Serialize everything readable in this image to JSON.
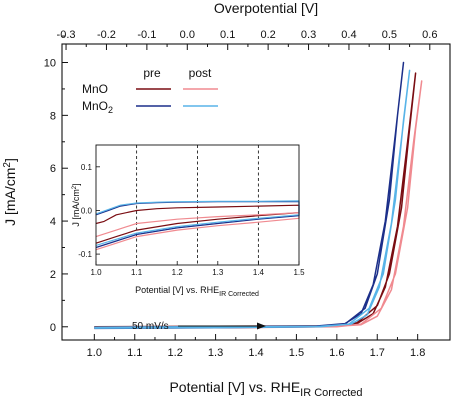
{
  "chart_data": {
    "type": "line",
    "main": {
      "xlabel": "Potential [V] vs. RHE",
      "xlabel_sub": "IR Corrected",
      "ylabel": "J [mA/cm",
      "ylabel_sup": "2",
      "ylabel_end": "]",
      "top_xlabel": "Overpotential [V]",
      "xlim": [
        0.92,
        1.88
      ],
      "ylim": [
        -0.5,
        10.7
      ],
      "x_ticks": [
        "1.0",
        "1.1",
        "1.2",
        "1.3",
        "1.4",
        "1.5",
        "1.6",
        "1.7",
        "1.8"
      ],
      "y_ticks": [
        "0",
        "2",
        "4",
        "6",
        "8",
        "10"
      ],
      "top_ticks": [
        "-0.3",
        "-0.2",
        "-0.1",
        "0.0",
        "0.1",
        "0.2",
        "0.3",
        "0.4",
        "0.5",
        "0.6"
      ],
      "top_offset": 1.23,
      "annotation": "50 mV/s",
      "legend": {
        "header_pre": "pre",
        "header_post": "post",
        "rows": [
          {
            "label": "MnO",
            "pre_color": "#7a0d12",
            "post_color": "#f08a90"
          },
          {
            "label": "MnO",
            "label_sub": "2",
            "pre_color": "#1c2f8a",
            "post_color": "#58b4e8"
          }
        ]
      },
      "series": [
        {
          "name": "MnO pre",
          "color": "#7a0d12",
          "forward": [
            [
              1.0,
              -0.03
            ],
            [
              1.3,
              -0.02
            ],
            [
              1.6,
              0.02
            ],
            [
              1.65,
              0.15
            ],
            [
              1.7,
              0.8
            ],
            [
              1.73,
              2.0
            ],
            [
              1.76,
              4.5
            ],
            [
              1.78,
              7.5
            ],
            [
              1.795,
              9.6
            ]
          ],
          "reverse": [
            [
              1.795,
              9.6
            ],
            [
              1.775,
              7.0
            ],
            [
              1.75,
              3.8
            ],
            [
              1.72,
              1.5
            ],
            [
              1.69,
              0.5
            ],
            [
              1.65,
              0.12
            ],
            [
              1.6,
              0.04
            ],
            [
              1.3,
              0.02
            ],
            [
              1.0,
              0.0
            ]
          ]
        },
        {
          "name": "MnO post",
          "color": "#f08a90",
          "forward": [
            [
              1.0,
              -0.05
            ],
            [
              1.3,
              -0.04
            ],
            [
              1.6,
              0.0
            ],
            [
              1.66,
              0.1
            ],
            [
              1.71,
              0.7
            ],
            [
              1.745,
              2.0
            ],
            [
              1.775,
              4.5
            ],
            [
              1.795,
              7.5
            ],
            [
              1.81,
              9.3
            ]
          ],
          "reverse": [
            [
              1.81,
              9.3
            ],
            [
              1.79,
              7.0
            ],
            [
              1.765,
              3.8
            ],
            [
              1.735,
              1.4
            ],
            [
              1.7,
              0.4
            ],
            [
              1.66,
              0.08
            ],
            [
              1.6,
              0.02
            ],
            [
              1.3,
              0.0
            ],
            [
              1.0,
              -0.02
            ]
          ]
        },
        {
          "name": "MnO2 pre",
          "color": "#1c2f8a",
          "forward": [
            [
              1.0,
              -0.06
            ],
            [
              1.3,
              -0.04
            ],
            [
              1.55,
              0.0
            ],
            [
              1.62,
              0.1
            ],
            [
              1.67,
              0.7
            ],
            [
              1.7,
              2.0
            ],
            [
              1.73,
              4.8
            ],
            [
              1.75,
              8.0
            ],
            [
              1.765,
              10.0
            ]
          ],
          "reverse": [
            [
              1.765,
              10.0
            ],
            [
              1.745,
              7.3
            ],
            [
              1.72,
              4.0
            ],
            [
              1.69,
              1.6
            ],
            [
              1.66,
              0.5
            ],
            [
              1.62,
              0.12
            ],
            [
              1.55,
              0.03
            ],
            [
              1.3,
              0.0
            ],
            [
              1.0,
              -0.02
            ]
          ]
        },
        {
          "name": "MnO2 post",
          "color": "#58b4e8",
          "forward": [
            [
              1.0,
              -0.05
            ],
            [
              1.3,
              -0.03
            ],
            [
              1.56,
              0.0
            ],
            [
              1.63,
              0.1
            ],
            [
              1.68,
              0.7
            ],
            [
              1.715,
              2.0
            ],
            [
              1.745,
              4.8
            ],
            [
              1.765,
              7.8
            ],
            [
              1.78,
              9.7
            ]
          ],
          "reverse": [
            [
              1.78,
              9.7
            ],
            [
              1.76,
              7.1
            ],
            [
              1.735,
              3.9
            ],
            [
              1.705,
              1.5
            ],
            [
              1.675,
              0.45
            ],
            [
              1.635,
              0.1
            ],
            [
              1.56,
              0.02
            ],
            [
              1.3,
              0.0
            ],
            [
              1.0,
              -0.02
            ]
          ]
        }
      ]
    },
    "inset": {
      "xlabel": "Potential [V] vs. RHE",
      "xlabel_sub": "IR Corrected",
      "ylabel": "J [mA/cm",
      "ylabel_sup": "2",
      "ylabel_end": "]",
      "xlim": [
        1.0,
        1.5
      ],
      "ylim": [
        -0.125,
        0.15
      ],
      "x_ticks": [
        "1.0",
        "1.1",
        "1.2",
        "1.3",
        "1.4",
        "1.5"
      ],
      "y_ticks": [
        "-0.1",
        "0.0",
        "0.1"
      ],
      "dashed_lines_x": [
        1.1,
        1.25,
        1.4
      ],
      "series": [
        {
          "name": "MnO pre",
          "color": "#7a0d12",
          "forward": [
            [
              1.0,
              -0.075
            ],
            [
              1.05,
              -0.06
            ],
            [
              1.1,
              -0.045
            ],
            [
              1.2,
              -0.03
            ],
            [
              1.3,
              -0.02
            ],
            [
              1.4,
              -0.012
            ],
            [
              1.5,
              -0.005
            ]
          ],
          "reverse": [
            [
              1.5,
              0.012
            ],
            [
              1.4,
              0.01
            ],
            [
              1.3,
              0.008
            ],
            [
              1.2,
              0.006
            ],
            [
              1.15,
              0.004
            ],
            [
              1.1,
              0.0
            ],
            [
              1.05,
              -0.01
            ],
            [
              1.02,
              -0.025
            ],
            [
              1.0,
              -0.03
            ]
          ]
        },
        {
          "name": "MnO post",
          "color": "#f08a90",
          "forward": [
            [
              1.0,
              -0.09
            ],
            [
              1.05,
              -0.075
            ],
            [
              1.1,
              -0.06
            ],
            [
              1.2,
              -0.045
            ],
            [
              1.3,
              -0.035
            ],
            [
              1.4,
              -0.027
            ],
            [
              1.5,
              -0.018
            ]
          ],
          "reverse": [
            [
              1.5,
              -0.005
            ],
            [
              1.4,
              -0.01
            ],
            [
              1.3,
              -0.014
            ],
            [
              1.2,
              -0.02
            ],
            [
              1.1,
              -0.03
            ],
            [
              1.05,
              -0.045
            ],
            [
              1.0,
              -0.06
            ]
          ]
        },
        {
          "name": "MnO2 pre",
          "color": "#1c2f8a",
          "forward": [
            [
              1.0,
              -0.085
            ],
            [
              1.05,
              -0.07
            ],
            [
              1.1,
              -0.055
            ],
            [
              1.2,
              -0.04
            ],
            [
              1.3,
              -0.03
            ],
            [
              1.4,
              -0.02
            ],
            [
              1.5,
              -0.012
            ]
          ],
          "reverse": [
            [
              1.5,
              0.02
            ],
            [
              1.4,
              0.02
            ],
            [
              1.3,
              0.02
            ],
            [
              1.2,
              0.019
            ],
            [
              1.15,
              0.018
            ],
            [
              1.1,
              0.016
            ],
            [
              1.06,
              0.01
            ],
            [
              1.03,
              0.0
            ],
            [
              1.0,
              -0.01
            ]
          ]
        },
        {
          "name": "MnO2 post",
          "color": "#58b4e8",
          "forward": [
            [
              1.0,
              -0.08
            ],
            [
              1.05,
              -0.066
            ],
            [
              1.1,
              -0.052
            ],
            [
              1.2,
              -0.037
            ],
            [
              1.3,
              -0.027
            ],
            [
              1.4,
              -0.018
            ],
            [
              1.5,
              -0.01
            ]
          ],
          "reverse": [
            [
              1.5,
              0.022
            ],
            [
              1.4,
              0.021
            ],
            [
              1.3,
              0.021
            ],
            [
              1.2,
              0.02
            ],
            [
              1.15,
              0.019
            ],
            [
              1.1,
              0.017
            ],
            [
              1.06,
              0.012
            ],
            [
              1.03,
              0.002
            ],
            [
              1.0,
              -0.008
            ]
          ]
        }
      ]
    }
  }
}
